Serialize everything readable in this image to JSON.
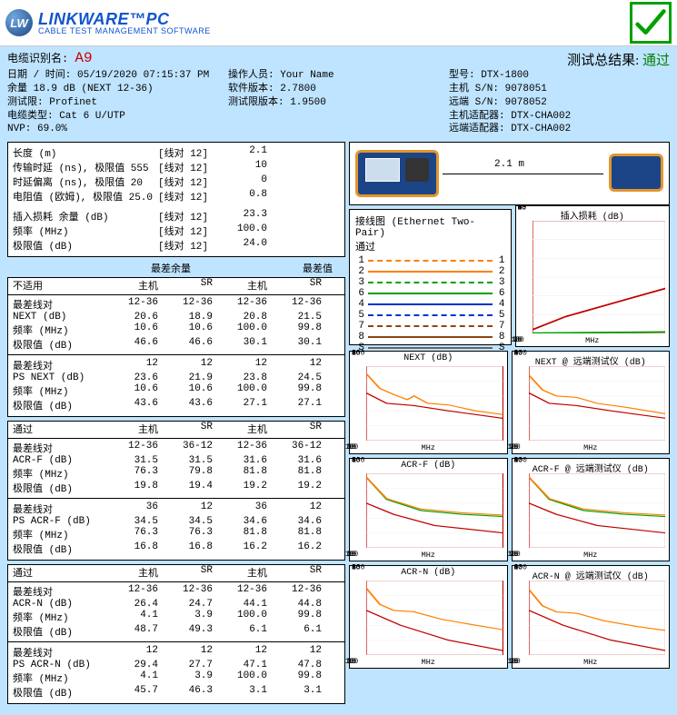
{
  "logo": {
    "circle": "LW",
    "title": "LINKWARE™PC",
    "subtitle": "CABLE TEST MANAGEMENT SOFTWARE"
  },
  "header": {
    "cable_id_label": "电缆识别名:",
    "cable_id": "A9",
    "result_label": "测试总结果:",
    "result": "通过"
  },
  "info_left": [
    "日期 / 时间: 05/19/2020  07:15:37 PM",
    "余量 18.9 dB (NEXT 12-36)",
    "测试限: Profinet",
    "电缆类型: Cat 6 U/UTP",
    "NVP: 69.0%"
  ],
  "info_mid": [
    "操作人员: Your Name",
    "软件版本: 2.7800",
    "测试限版本: 1.9500"
  ],
  "info_right": [
    "型号: DTX-1800",
    "主机 S/N: 9078051",
    "远端 S/N: 9078052",
    "主机适配器: DTX-CHA002",
    "远端适配器: DTX-CHA002"
  ],
  "measurements": [
    {
      "label": "长度 (m)",
      "pair": "[线对 12]",
      "val": "2.1"
    },
    {
      "label": "传输时延 (ns), 极限值 555",
      "pair": "[线对 12]",
      "val": "10"
    },
    {
      "label": "时延偏离 (ns), 极限值 20",
      "pair": "[线对 12]",
      "val": "0"
    },
    {
      "label": "电阻值 (欧姆), 极限值 25.0",
      "pair": "[线对 12]",
      "val": "0.8"
    }
  ],
  "il_rows": [
    {
      "label": "插入损耗 余量 (dB)",
      "pair": "[线对 12]",
      "val": "23.3"
    },
    {
      "label": "频率 (MHz)",
      "pair": "[线对 12]",
      "val": "100.0"
    },
    {
      "label": "极限值 (dB)",
      "pair": "[线对 12]",
      "val": "24.0"
    }
  ],
  "worst_hdr": {
    "a": "最差余量",
    "b": "最差值"
  },
  "group_labels": {
    "na": "不适用",
    "host": "主机",
    "sr": "SR",
    "pass": "通过",
    "worst_pair": "最差线对",
    "next": "NEXT (dB)",
    "psnext": "PS NEXT (dB)",
    "acrf": "ACR-F (dB)",
    "psacrf": "PS ACR-F (dB)",
    "acrn": "ACR-N (dB)",
    "psacrn": "PS ACR-N (dB)",
    "freq": "频率 (MHz)",
    "limit": "极限值 (dB)"
  },
  "next_block": [
    {
      "l": "最差线对",
      "v": [
        "12-36",
        "12-36",
        "12-36",
        "12-36"
      ]
    },
    {
      "l": "NEXT (dB)",
      "v": [
        "20.6",
        "18.9",
        "20.8",
        "21.5"
      ]
    },
    {
      "l": "频率 (MHz)",
      "v": [
        "10.6",
        "10.6",
        "100.0",
        "99.8"
      ]
    },
    {
      "l": "极限值 (dB)",
      "v": [
        "46.6",
        "46.6",
        "30.1",
        "30.1"
      ]
    },
    {
      "l": "最差线对",
      "v": [
        "12",
        "12",
        "12",
        "12"
      ]
    },
    {
      "l": "PS NEXT (dB)",
      "v": [
        "23.6",
        "21.9",
        "23.8",
        "24.5"
      ]
    },
    {
      "l": "频率 (MHz)",
      "v": [
        "10.6",
        "10.6",
        "100.0",
        "99.8"
      ]
    },
    {
      "l": "极限值 (dB)",
      "v": [
        "43.6",
        "43.6",
        "27.1",
        "27.1"
      ]
    }
  ],
  "acrf_block": [
    {
      "l": "最差线对",
      "v": [
        "12-36",
        "36-12",
        "12-36",
        "36-12"
      ]
    },
    {
      "l": "ACR-F (dB)",
      "v": [
        "31.5",
        "31.5",
        "31.6",
        "31.6"
      ]
    },
    {
      "l": "频率 (MHz)",
      "v": [
        "76.3",
        "79.8",
        "81.8",
        "81.8"
      ]
    },
    {
      "l": "极限值 (dB)",
      "v": [
        "19.8",
        "19.4",
        "19.2",
        "19.2"
      ]
    },
    {
      "l": "最差线对",
      "v": [
        "36",
        "12",
        "36",
        "12"
      ]
    },
    {
      "l": "PS ACR-F (dB)",
      "v": [
        "34.5",
        "34.5",
        "34.6",
        "34.6"
      ]
    },
    {
      "l": "频率 (MHz)",
      "v": [
        "76.3",
        "76.3",
        "81.8",
        "81.8"
      ]
    },
    {
      "l": "极限值 (dB)",
      "v": [
        "16.8",
        "16.8",
        "16.2",
        "16.2"
      ]
    }
  ],
  "acrn_block": [
    {
      "l": "最差线对",
      "v": [
        "12-36",
        "12-36",
        "12-36",
        "12-36"
      ]
    },
    {
      "l": "ACR-N (dB)",
      "v": [
        "26.4",
        "24.7",
        "44.1",
        "44.8"
      ]
    },
    {
      "l": "频率 (MHz)",
      "v": [
        "4.1",
        "3.9",
        "100.0",
        "99.8"
      ]
    },
    {
      "l": "极限值 (dB)",
      "v": [
        "48.7",
        "49.3",
        "6.1",
        "6.1"
      ]
    },
    {
      "l": "最差线对",
      "v": [
        "12",
        "12",
        "12",
        "12"
      ]
    },
    {
      "l": "PS ACR-N (dB)",
      "v": [
        "29.4",
        "27.7",
        "47.1",
        "47.8"
      ]
    },
    {
      "l": "频率 (MHz)",
      "v": [
        "4.1",
        "3.9",
        "100.0",
        "99.8"
      ]
    },
    {
      "l": "极限值 (dB)",
      "v": [
        "45.7",
        "46.3",
        "3.1",
        "3.1"
      ]
    }
  ],
  "diagram": {
    "length": "2.1 m"
  },
  "wiremap": {
    "title": "接线图 (Ethernet Two-Pair)",
    "status": "通过",
    "pairs": [
      {
        "n": 1,
        "color": "#ff8000",
        "dash": "3 3"
      },
      {
        "n": 2,
        "color": "#ff8000",
        "dash": ""
      },
      {
        "n": 3,
        "color": "#00a000",
        "dash": "3 3"
      },
      {
        "n": 6,
        "color": "#00a000",
        "dash": ""
      },
      {
        "n": 4,
        "color": "#0033cc",
        "dash": ""
      },
      {
        "n": 5,
        "color": "#0033cc",
        "dash": "3 3"
      },
      {
        "n": 7,
        "color": "#8b4513",
        "dash": "3 3"
      },
      {
        "n": 8,
        "color": "#8b4513",
        "dash": ""
      },
      {
        "n": "S",
        "color": "#666",
        "dash": ""
      }
    ]
  },
  "graph_cfg": {
    "xlabel": "MHz"
  },
  "il_graph": {
    "title": "插入损耗 (dB)",
    "ylim": [
      0,
      60
    ],
    "yticks": [
      0,
      10,
      20,
      30,
      40,
      50,
      60
    ],
    "xticks": [
      0,
      25,
      50,
      75,
      100
    ],
    "series": [
      {
        "color": "#c00000",
        "pts": [
          [
            0,
            2
          ],
          [
            25,
            9
          ],
          [
            50,
            14
          ],
          [
            75,
            19
          ],
          [
            100,
            24
          ]
        ]
      },
      {
        "color": "#00a000",
        "pts": [
          [
            0,
            0.2
          ],
          [
            25,
            0.3
          ],
          [
            50,
            0.5
          ],
          [
            75,
            0.6
          ],
          [
            100,
            0.8
          ]
        ]
      }
    ]
  },
  "next_graph": {
    "title": "NEXT (dB)",
    "ylim": [
      0,
      100
    ],
    "yticks": [
      0,
      20,
      40,
      60,
      80,
      100
    ],
    "xticks": [
      0,
      25,
      50,
      75,
      100
    ],
    "series": [
      {
        "color": "#c00000",
        "pts": [
          [
            0,
            64
          ],
          [
            15,
            50
          ],
          [
            35,
            47
          ],
          [
            60,
            40
          ],
          [
            100,
            30
          ]
        ]
      },
      {
        "color": "#ff8000",
        "pts": [
          [
            0,
            90
          ],
          [
            10,
            70
          ],
          [
            20,
            62
          ],
          [
            30,
            55
          ],
          [
            35,
            60
          ],
          [
            45,
            50
          ],
          [
            60,
            48
          ],
          [
            80,
            40
          ],
          [
            100,
            35
          ]
        ]
      }
    ]
  },
  "next_r_graph": {
    "title": "NEXT @ 远端测试仪 (dB)",
    "ylim": [
      0,
      100
    ],
    "yticks": [
      0,
      20,
      40,
      60,
      80,
      100
    ],
    "xticks": [
      0,
      25,
      50,
      75,
      100
    ],
    "series": [
      {
        "color": "#c00000",
        "pts": [
          [
            0,
            64
          ],
          [
            15,
            50
          ],
          [
            35,
            47
          ],
          [
            60,
            40
          ],
          [
            100,
            30
          ]
        ]
      },
      {
        "color": "#ff8000",
        "pts": [
          [
            0,
            88
          ],
          [
            10,
            68
          ],
          [
            20,
            60
          ],
          [
            35,
            58
          ],
          [
            50,
            50
          ],
          [
            70,
            45
          ],
          [
            100,
            36
          ]
        ]
      }
    ]
  },
  "acrf_graph": {
    "title": "ACR-F (dB)",
    "ylim": [
      0,
      100
    ],
    "yticks": [
      0,
      20,
      40,
      60,
      80,
      100
    ],
    "xticks": [
      0,
      25,
      50,
      75,
      100
    ],
    "series": [
      {
        "color": "#c00000",
        "pts": [
          [
            0,
            60
          ],
          [
            20,
            45
          ],
          [
            50,
            30
          ],
          [
            100,
            20
          ]
        ]
      },
      {
        "color": "#00a000",
        "pts": [
          [
            0,
            95
          ],
          [
            15,
            65
          ],
          [
            40,
            50
          ],
          [
            70,
            45
          ],
          [
            100,
            42
          ]
        ]
      },
      {
        "color": "#ff8000",
        "pts": [
          [
            0,
            95
          ],
          [
            15,
            66
          ],
          [
            40,
            52
          ],
          [
            70,
            47
          ],
          [
            100,
            44
          ]
        ]
      }
    ]
  },
  "acrf_r_graph": {
    "title": "ACR-F @ 远端测试仪 (dB)",
    "ylim": [
      0,
      100
    ],
    "yticks": [
      0,
      20,
      40,
      60,
      80,
      100
    ],
    "xticks": [
      0,
      25,
      50,
      75,
      100
    ],
    "series": [
      {
        "color": "#c00000",
        "pts": [
          [
            0,
            60
          ],
          [
            20,
            45
          ],
          [
            50,
            30
          ],
          [
            100,
            20
          ]
        ]
      },
      {
        "color": "#00a000",
        "pts": [
          [
            0,
            95
          ],
          [
            15,
            65
          ],
          [
            40,
            50
          ],
          [
            70,
            45
          ],
          [
            100,
            42
          ]
        ]
      },
      {
        "color": "#ff8000",
        "pts": [
          [
            0,
            95
          ],
          [
            15,
            66
          ],
          [
            40,
            52
          ],
          [
            70,
            47
          ],
          [
            100,
            44
          ]
        ]
      }
    ]
  },
  "acrn_graph": {
    "title": "ACR-N (dB)",
    "ylim": [
      0,
      100
    ],
    "yticks": [
      0,
      20,
      40,
      60,
      80,
      100
    ],
    "xticks": [
      0,
      25,
      50,
      75,
      100
    ],
    "series": [
      {
        "color": "#c00000",
        "pts": [
          [
            0,
            60
          ],
          [
            25,
            40
          ],
          [
            60,
            20
          ],
          [
            100,
            6
          ]
        ]
      },
      {
        "color": "#ff8000",
        "pts": [
          [
            0,
            90
          ],
          [
            10,
            68
          ],
          [
            20,
            60
          ],
          [
            35,
            58
          ],
          [
            55,
            48
          ],
          [
            80,
            40
          ],
          [
            100,
            34
          ]
        ]
      }
    ]
  },
  "acrn_r_graph": {
    "title": "ACR-N @ 远端测试仪 (dB)",
    "ylim": [
      0,
      100
    ],
    "yticks": [
      0,
      20,
      40,
      60,
      80,
      100
    ],
    "xticks": [
      0,
      25,
      50,
      75,
      100
    ],
    "series": [
      {
        "color": "#c00000",
        "pts": [
          [
            0,
            60
          ],
          [
            25,
            40
          ],
          [
            60,
            20
          ],
          [
            100,
            6
          ]
        ]
      },
      {
        "color": "#ff8000",
        "pts": [
          [
            0,
            88
          ],
          [
            10,
            66
          ],
          [
            20,
            58
          ],
          [
            35,
            56
          ],
          [
            55,
            46
          ],
          [
            80,
            38
          ],
          [
            100,
            33
          ]
        ]
      }
    ]
  }
}
